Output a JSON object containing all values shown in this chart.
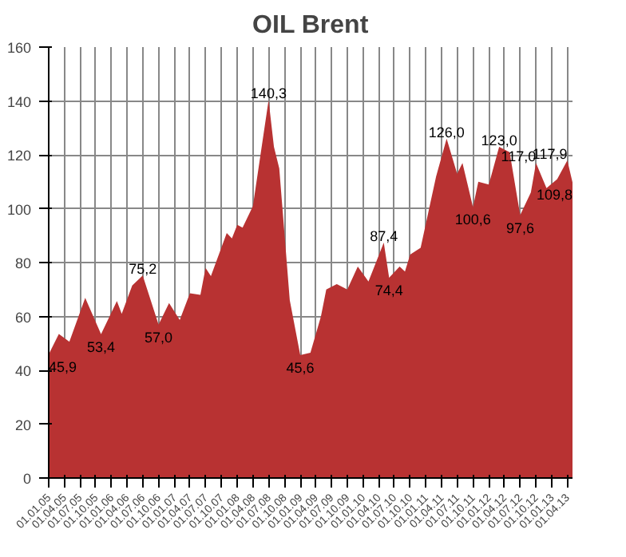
{
  "chart_data": {
    "type": "area",
    "title": "OIL Brent",
    "color": "#b83232",
    "x": [
      "2005-01",
      "2005-03",
      "2005-05",
      "2005-08",
      "2005-11",
      "2006-02",
      "2006-03",
      "2006-05",
      "2006-07",
      "2006-10",
      "2006-12",
      "2007-02",
      "2007-04",
      "2007-06",
      "2007-07",
      "2007-08",
      "2007-11",
      "2007-12",
      "2008-01",
      "2008-02",
      "2008-04",
      "2008-07",
      "2008-08",
      "2008-09",
      "2008-11",
      "2009-01",
      "2009-03",
      "2009-05",
      "2009-06",
      "2009-08",
      "2009-10",
      "2009-12",
      "2010-02",
      "2010-05",
      "2010-06",
      "2010-08",
      "2010-09",
      "2010-10",
      "2010-12",
      "2011-03",
      "2011-05",
      "2011-07",
      "2011-08",
      "2011-10",
      "2011-11",
      "2012-01",
      "2012-03",
      "2012-05",
      "2012-07",
      "2012-09",
      "2012-10",
      "2012-12",
      "2013-02",
      "2013-04",
      "2013-05"
    ],
    "values": [
      45.9,
      53.5,
      50.6,
      66.9,
      53.4,
      65.7,
      61,
      71.5,
      75.2,
      57.0,
      65,
      58.7,
      68.6,
      68,
      78,
      75,
      91,
      89,
      94,
      93,
      101,
      140.3,
      123,
      115,
      66,
      45.6,
      46.5,
      60,
      70,
      72,
      70,
      78.5,
      73,
      87.4,
      74.4,
      78.5,
      76.7,
      83,
      85.5,
      112,
      126.0,
      113,
      117,
      100.6,
      110,
      109,
      123.0,
      121,
      97.6,
      106,
      117.0,
      107.6,
      111,
      117.9,
      109.8
    ],
    "xlim": [
      "2005-01",
      "2013-05"
    ],
    "xticks": [
      {
        "value": "2005-01",
        "label": "01.01.05"
      },
      {
        "value": "2005-04",
        "label": "01.04.05"
      },
      {
        "value": "2005-07",
        "label": "01.07.05"
      },
      {
        "value": "2005-10",
        "label": "01.10.05"
      },
      {
        "value": "2006-01",
        "label": "01.01.06"
      },
      {
        "value": "2006-04",
        "label": "01.04.06"
      },
      {
        "value": "2006-07",
        "label": "01.07.06"
      },
      {
        "value": "2006-10",
        "label": "01.10.06"
      },
      {
        "value": "2007-01",
        "label": "01.01.07"
      },
      {
        "value": "2007-04",
        "label": "01.04.07"
      },
      {
        "value": "2007-07",
        "label": "01.07.07"
      },
      {
        "value": "2007-10",
        "label": "01.10.07"
      },
      {
        "value": "2008-01",
        "label": "01.01.08"
      },
      {
        "value": "2008-04",
        "label": "01.04.08"
      },
      {
        "value": "2008-07",
        "label": "01.07.08"
      },
      {
        "value": "2008-10",
        "label": "01.10.08"
      },
      {
        "value": "2009-01",
        "label": "01.01.09"
      },
      {
        "value": "2009-04",
        "label": "01.04.09"
      },
      {
        "value": "2009-07",
        "label": "01.07.09"
      },
      {
        "value": "2009-10",
        "label": "01.10.09"
      },
      {
        "value": "2010-01",
        "label": "01.01.10"
      },
      {
        "value": "2010-04",
        "label": "01.04.10"
      },
      {
        "value": "2010-07",
        "label": "01.07.10"
      },
      {
        "value": "2010-10",
        "label": "01.10.10"
      },
      {
        "value": "2011-01",
        "label": "01.01.11"
      },
      {
        "value": "2011-04",
        "label": "01.04.11"
      },
      {
        "value": "2011-07",
        "label": "01.07.11"
      },
      {
        "value": "2011-10",
        "label": "01.10.11"
      },
      {
        "value": "2012-01",
        "label": "01.01.12"
      },
      {
        "value": "2012-04",
        "label": "01.04.12"
      },
      {
        "value": "2012-07",
        "label": "01.07.12"
      },
      {
        "value": "2012-10",
        "label": "01.10.12"
      },
      {
        "value": "2013-01",
        "label": "01.01.13"
      },
      {
        "value": "2013-04",
        "label": "01.04.13"
      }
    ],
    "ylim": [
      0,
      160
    ],
    "yticks": [
      0,
      20,
      40,
      60,
      80,
      100,
      120,
      140,
      160
    ],
    "grid": true,
    "annotations": [
      {
        "text": "45,9",
        "x": "2005-01",
        "y": 45.9
      },
      {
        "text": "53,4",
        "x": "2005-11",
        "y": 53.4
      },
      {
        "text": "75,2",
        "x": "2006-07",
        "y": 75.2
      },
      {
        "text": "57,0",
        "x": "2006-10",
        "y": 57.0
      },
      {
        "text": "140,3",
        "x": "2008-07",
        "y": 140.3
      },
      {
        "text": "45,6",
        "x": "2009-01",
        "y": 45.6
      },
      {
        "text": "87,4",
        "x": "2010-05",
        "y": 87.4
      },
      {
        "text": "74,4",
        "x": "2010-06",
        "y": 74.4
      },
      {
        "text": "126,0",
        "x": "2011-05",
        "y": 126.0
      },
      {
        "text": "100,6",
        "x": "2011-10",
        "y": 100.6
      },
      {
        "text": "123,0",
        "x": "2012-03",
        "y": 123.0
      },
      {
        "text": "97,6",
        "x": "2012-07",
        "y": 97.6
      },
      {
        "text": "117,0",
        "x": "2012-10",
        "y": 117.0
      },
      {
        "text": "117,9",
        "x": "2013-04",
        "y": 117.9
      },
      {
        "text": "109,8",
        "x": "2013-05",
        "y": 109.8
      }
    ]
  }
}
